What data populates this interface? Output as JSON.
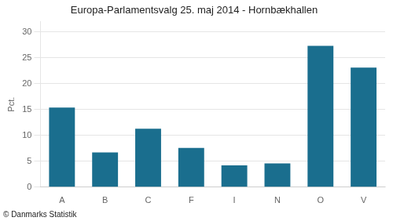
{
  "chart_data": {
    "type": "bar",
    "title": "Europa-Parlamentsvalg 25. maj 2014 - Hornbækhallen",
    "ylabel": "Pct.",
    "annotations": [
      "© Danmarks Statistik"
    ],
    "categories": [
      "A",
      "B",
      "C",
      "F",
      "I",
      "N",
      "O",
      "V"
    ],
    "values": [
      15.4,
      6.7,
      11.3,
      7.6,
      4.2,
      4.6,
      27.3,
      23.1
    ],
    "color": "#1a6e8e",
    "ylim": [
      0,
      32
    ],
    "yticks": [
      0,
      5,
      10,
      15,
      20,
      25,
      30
    ],
    "grid": true
  }
}
